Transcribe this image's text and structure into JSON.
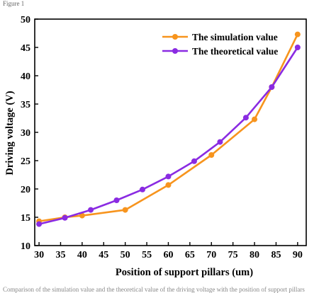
{
  "caption_top": "Figure 1",
  "caption_bottom": "Comparison of the simulation value and the theoretical value of the driving voltage with the position of support pillars",
  "chart_data": {
    "type": "line",
    "xlabel": "Position of support pillars (um)",
    "ylabel": "Driving voltage (V)",
    "xlim": [
      29,
      92
    ],
    "ylim": [
      10,
      50
    ],
    "xticks": [
      30,
      35,
      40,
      45,
      50,
      55,
      60,
      65,
      70,
      75,
      80,
      85,
      90
    ],
    "yticks": [
      10,
      15,
      20,
      25,
      30,
      35,
      40,
      45,
      50
    ],
    "grid": false,
    "legend_position": "top-right",
    "series": [
      {
        "name": "The simulation value",
        "color": "#F7941D",
        "x": [
          30,
          36,
          40,
          50,
          60,
          70,
          80,
          84,
          90
        ],
        "y": [
          14.3,
          15.0,
          15.3,
          16.3,
          20.7,
          26.0,
          32.3,
          38.0,
          47.3
        ]
      },
      {
        "name": "The theoretical value",
        "color": "#8A2BE2",
        "x": [
          30,
          36,
          42,
          48,
          54,
          60,
          66,
          72,
          78,
          84,
          90
        ],
        "y": [
          13.8,
          14.9,
          16.3,
          18.0,
          19.9,
          22.2,
          24.9,
          28.3,
          32.6,
          38.0,
          45.0
        ]
      }
    ]
  }
}
